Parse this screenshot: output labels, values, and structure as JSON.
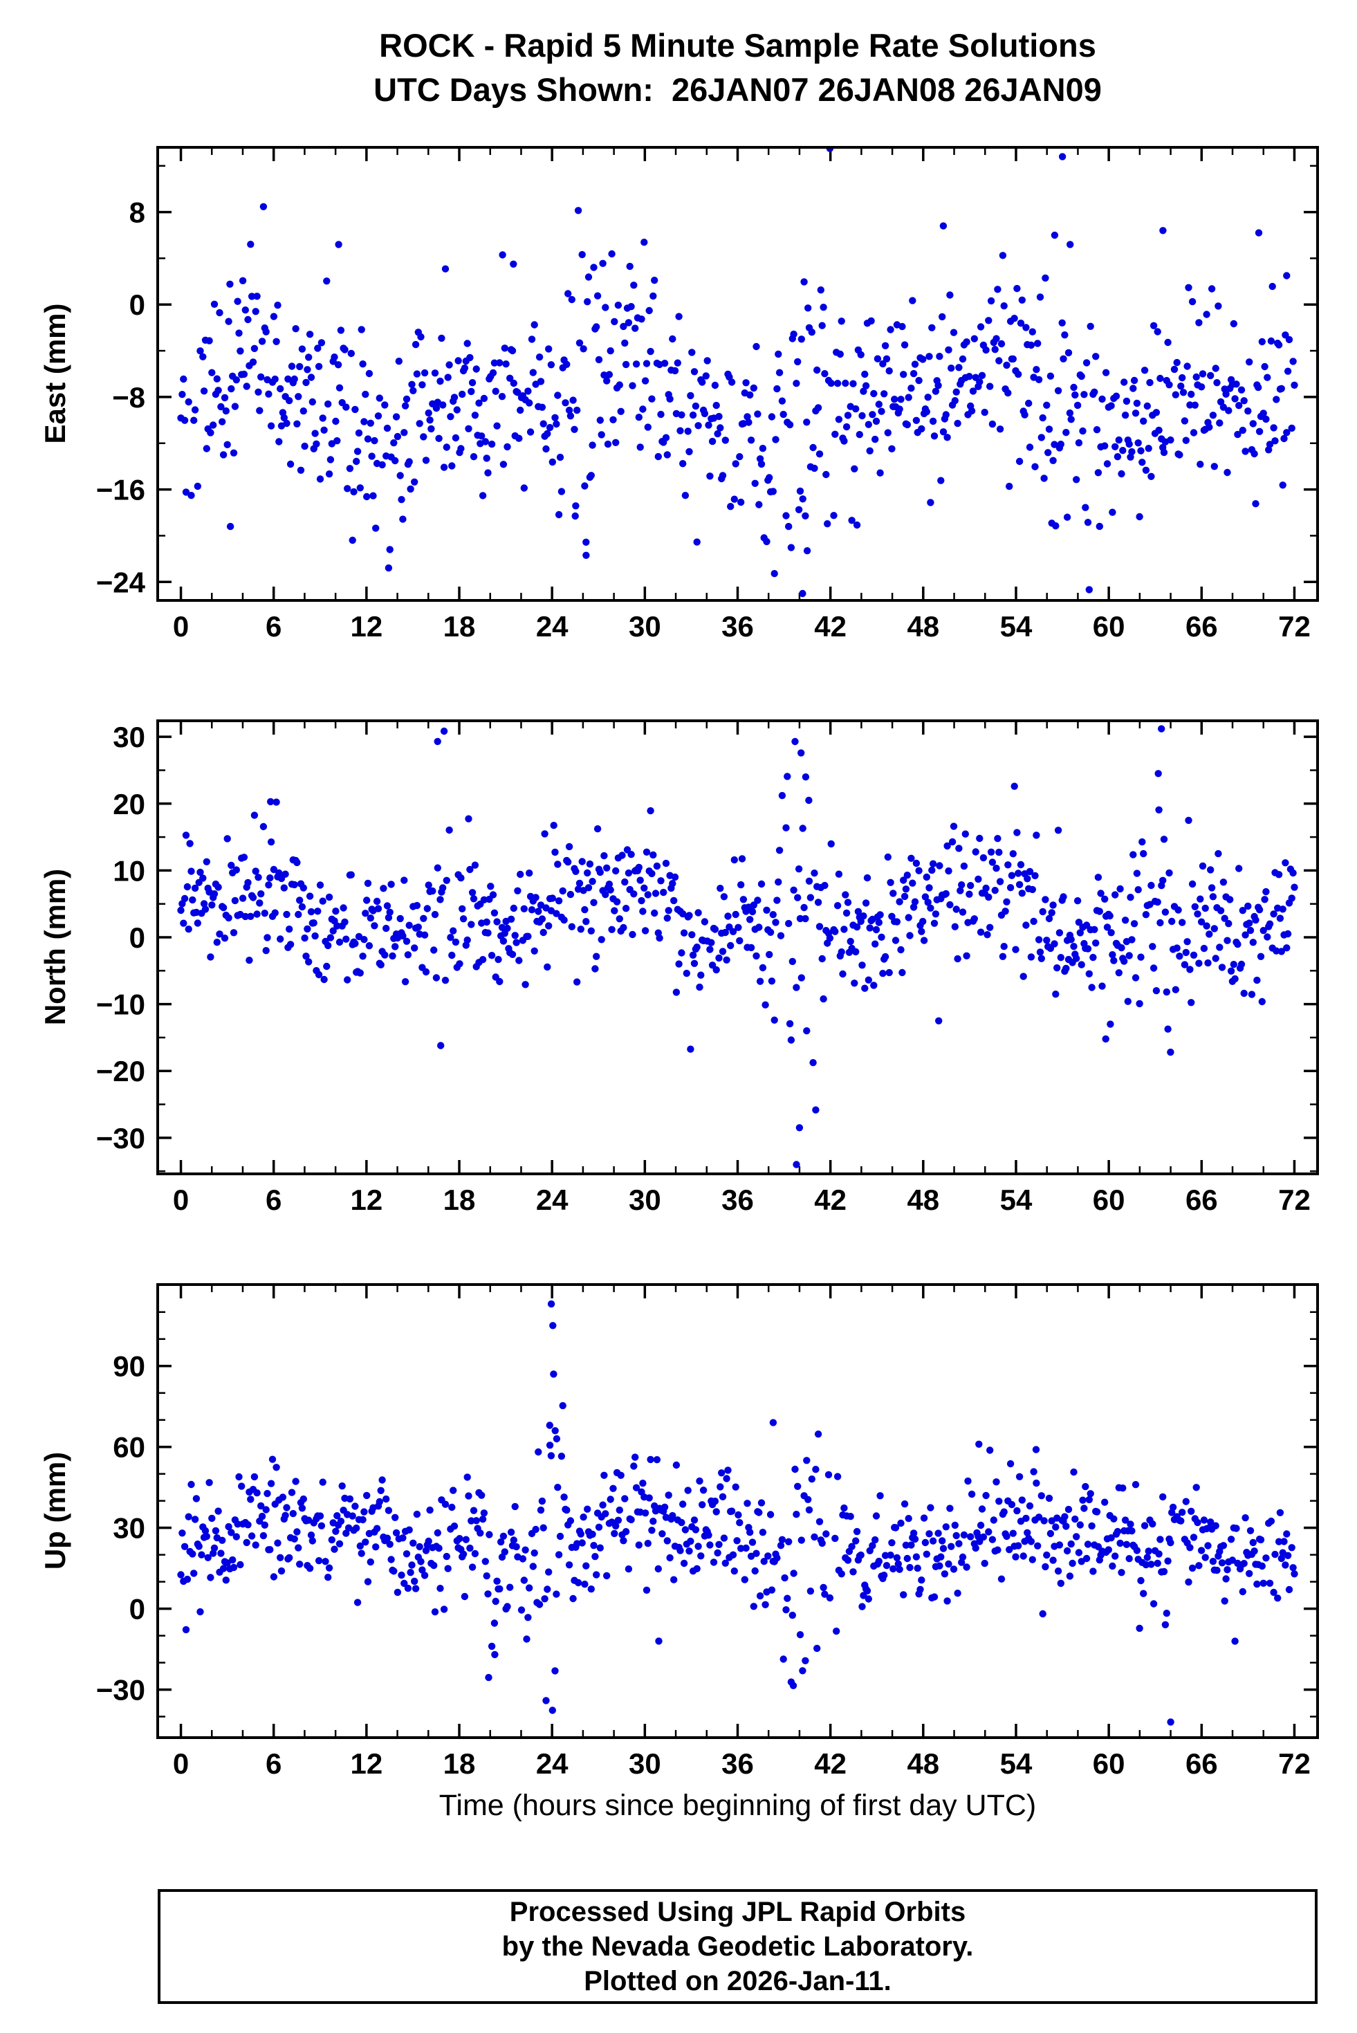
{
  "title": {
    "line1": "ROCK - Rapid 5 Minute Sample Rate Solutions",
    "line2": "UTC Days Shown:  26JAN07 26JAN08 26JAN09"
  },
  "xlabel": "Time (hours since beginning of first day UTC)",
  "point_color": "#0000e0",
  "footer": {
    "line1": "Processed Using JPL Rapid Orbits",
    "line2": "by the Nevada Geodetic Laboratory.",
    "line3": "Plotted on 2026-Jan-11."
  },
  "chart_data": [
    {
      "type": "scatter",
      "name": "East",
      "ylabel": "East (mm)",
      "xlim": [
        -1.5,
        73.5
      ],
      "ylim": [
        -25.6,
        13.6
      ],
      "xticks": [
        0,
        6,
        12,
        18,
        24,
        30,
        36,
        42,
        48,
        54,
        60,
        66,
        72
      ],
      "x_minor_step": 2,
      "yticks": [
        -24,
        -16,
        -8,
        0,
        8
      ],
      "y_minor_step": 4,
      "grid": false,
      "marker": "circle",
      "sample_rate_minutes": 5,
      "gen": {
        "seed": 101,
        "n": 864,
        "base": -8,
        "std": 4.0,
        "wander": [
          2.3,
          1.4,
          0.9
        ],
        "dropout": 0.07,
        "bursts": [
          {
            "t": 26,
            "w": 1.6,
            "k": 0.9
          },
          {
            "t": 40,
            "w": 1.8,
            "k": 1.1
          },
          {
            "t": 57,
            "w": 1.4,
            "k": 0.9
          }
        ]
      },
      "outliers": [
        [
          57.0,
          12.8
        ],
        [
          56.5,
          6.0
        ],
        [
          57.5,
          5.2
        ],
        [
          40.2,
          -25.0
        ],
        [
          40.5,
          -21.3
        ],
        [
          26.2,
          -21.7
        ],
        [
          25.5,
          -18.3
        ],
        [
          49.3,
          6.8
        ],
        [
          10.2,
          5.2
        ],
        [
          20.8,
          4.3
        ],
        [
          21.5,
          3.5
        ],
        [
          3.2,
          -19.2
        ],
        [
          63.5,
          6.4
        ],
        [
          69.7,
          6.2
        ],
        [
          71.5,
          2.5
        ]
      ]
    },
    {
      "type": "scatter",
      "name": "North",
      "ylabel": "North (mm)",
      "xlim": [
        -1.5,
        73.5
      ],
      "ylim": [
        -35.4,
        32.4
      ],
      "xticks": [
        0,
        6,
        12,
        18,
        24,
        30,
        36,
        42,
        48,
        54,
        60,
        66,
        72
      ],
      "x_minor_step": 2,
      "yticks": [
        -30,
        -20,
        -10,
        0,
        10,
        20,
        30
      ],
      "y_minor_step": 5,
      "grid": false,
      "marker": "circle",
      "sample_rate_minutes": 5,
      "gen": {
        "seed": 202,
        "n": 864,
        "base": 3.2,
        "std": 4.6,
        "wander": [
          2.8,
          1.8,
          1.1
        ],
        "dropout": 0.07,
        "bursts": [
          {
            "t": 40,
            "w": 1.2,
            "k": 1.6
          },
          {
            "t": 17,
            "w": 0.9,
            "k": 1.0
          },
          {
            "t": 63,
            "w": 1.2,
            "k": 1.0
          }
        ]
      },
      "outliers": [
        [
          16.6,
          29.3
        ],
        [
          16.8,
          -16.2
        ],
        [
          39.8,
          -34.0
        ],
        [
          40.0,
          -28.5
        ],
        [
          40.1,
          27.6
        ],
        [
          40.4,
          24.0
        ],
        [
          40.6,
          20.5
        ],
        [
          63.4,
          31.2
        ],
        [
          63.2,
          24.5
        ],
        [
          53.9,
          22.6
        ],
        [
          5.8,
          20.3
        ],
        [
          59.8,
          -15.2
        ],
        [
          60.1,
          -13.0
        ],
        [
          49.0,
          -12.5
        ]
      ]
    },
    {
      "type": "scatter",
      "name": "Up",
      "ylabel": "Up (mm)",
      "xlim": [
        -1.5,
        73.5
      ],
      "ylim": [
        -47.8,
        120.2
      ],
      "xticks": [
        0,
        6,
        12,
        18,
        24,
        30,
        36,
        42,
        48,
        54,
        60,
        66,
        72
      ],
      "x_minor_step": 2,
      "yticks": [
        -30,
        0,
        30,
        60,
        90
      ],
      "y_minor_step": 10,
      "grid": false,
      "marker": "circle",
      "sample_rate_minutes": 5,
      "gen": {
        "seed": 303,
        "n": 864,
        "base": 25,
        "std": 10.5,
        "wander": [
          6,
          3.5,
          2.2
        ],
        "dropout": 0.07,
        "bursts": [
          {
            "t": 24,
            "w": 0.8,
            "k": 1.9
          },
          {
            "t": 40,
            "w": 1.5,
            "k": 0.8
          },
          {
            "t": 20,
            "w": 0.8,
            "k": 0.8
          }
        ]
      },
      "outliers": [
        [
          23.95,
          113
        ],
        [
          24.05,
          105
        ],
        [
          24.1,
          87
        ],
        [
          23.85,
          68
        ],
        [
          24.2,
          66
        ],
        [
          24.3,
          63
        ],
        [
          64.0,
          -42
        ],
        [
          39.6,
          -28.5
        ],
        [
          40.2,
          -23
        ],
        [
          19.9,
          -25.5
        ],
        [
          20.3,
          -17
        ],
        [
          30.9,
          -12
        ],
        [
          38.3,
          69
        ],
        [
          51.6,
          61
        ],
        [
          55.3,
          59
        ]
      ]
    }
  ]
}
